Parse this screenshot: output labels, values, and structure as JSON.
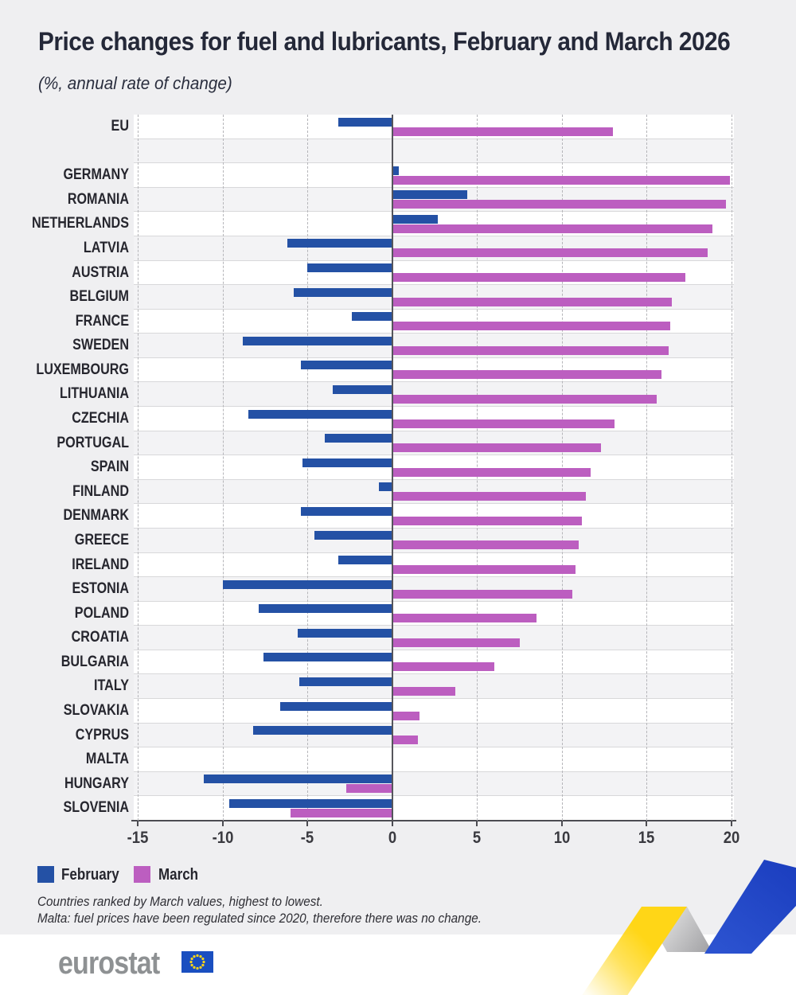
{
  "title": "Price changes for fuel and lubricants, February and March 2026",
  "subtitle": "(%, annual rate of change)",
  "legend": {
    "february": "February",
    "march": "March"
  },
  "footnotes": [
    "Countries ranked by March values, highest to lowest.",
    "Malta: fuel prices have been regulated since 2020, therefore there was no change."
  ],
  "logo": {
    "text": "eurostat"
  },
  "colors": {
    "february_bar": "#2451a5",
    "march_bar": "#bc5ec0",
    "zero_line": "#55555c",
    "page_background": "#efeff1",
    "stripe_alt": "#f3f3f5",
    "ribbon_yellow": "#ffd617",
    "ribbon_blue": "#2149c6",
    "flag_blue": "#1a4fc0",
    "star_yellow": "#ffd617"
  },
  "chart_data": {
    "type": "bar",
    "orientation": "horizontal",
    "title": "Price changes for fuel and lubricants, February and March 2026",
    "subtitle": "(%, annual rate of change)",
    "unit": "%",
    "categories": [
      "EU",
      "",
      "GERMANY",
      "ROMANIA",
      "NETHERLANDS",
      "LATVIA",
      "AUSTRIA",
      "BELGIUM",
      "FRANCE",
      "SWEDEN",
      "LUXEMBOURG",
      "LITHUANIA",
      "CZECHIA",
      "PORTUGAL",
      "SPAIN",
      "FINLAND",
      "DENMARK",
      "GREECE",
      "IRELAND",
      "ESTONIA",
      "POLAND",
      "CROATIA",
      "BULGARIA",
      "ITALY",
      "SLOVAKIA",
      "CYPRUS",
      "MALTA",
      "HUNGARY",
      "SLOVENIA"
    ],
    "series": [
      {
        "name": "February",
        "color": "#2451a5",
        "values": [
          -3.2,
          null,
          0.4,
          4.4,
          2.7,
          -6.2,
          -5.0,
          -5.8,
          -2.4,
          -8.8,
          -5.4,
          -3.5,
          -8.5,
          -4.0,
          -5.3,
          -0.8,
          -5.4,
          -4.6,
          -3.2,
          -10.0,
          -7.9,
          -5.6,
          -7.6,
          -5.5,
          -6.6,
          -8.2,
          0.0,
          -11.1,
          -9.6
        ]
      },
      {
        "name": "March",
        "color": "#bc5ec0",
        "values": [
          13.0,
          null,
          19.9,
          19.7,
          18.9,
          18.6,
          17.3,
          16.5,
          16.4,
          16.3,
          15.9,
          15.6,
          13.1,
          12.3,
          11.7,
          11.4,
          11.2,
          11.0,
          10.8,
          10.6,
          8.5,
          7.5,
          6.0,
          3.7,
          1.6,
          1.5,
          0.0,
          -2.7,
          -6.0
        ]
      }
    ],
    "xlim": [
      -15,
      20
    ],
    "xticks": [
      -15,
      -10,
      -5,
      0,
      5,
      10,
      15,
      20
    ],
    "grid": "vertical-dashed",
    "legend_position": "bottom-left",
    "ranking_note": "Countries ranked by March values, highest to lowest."
  }
}
